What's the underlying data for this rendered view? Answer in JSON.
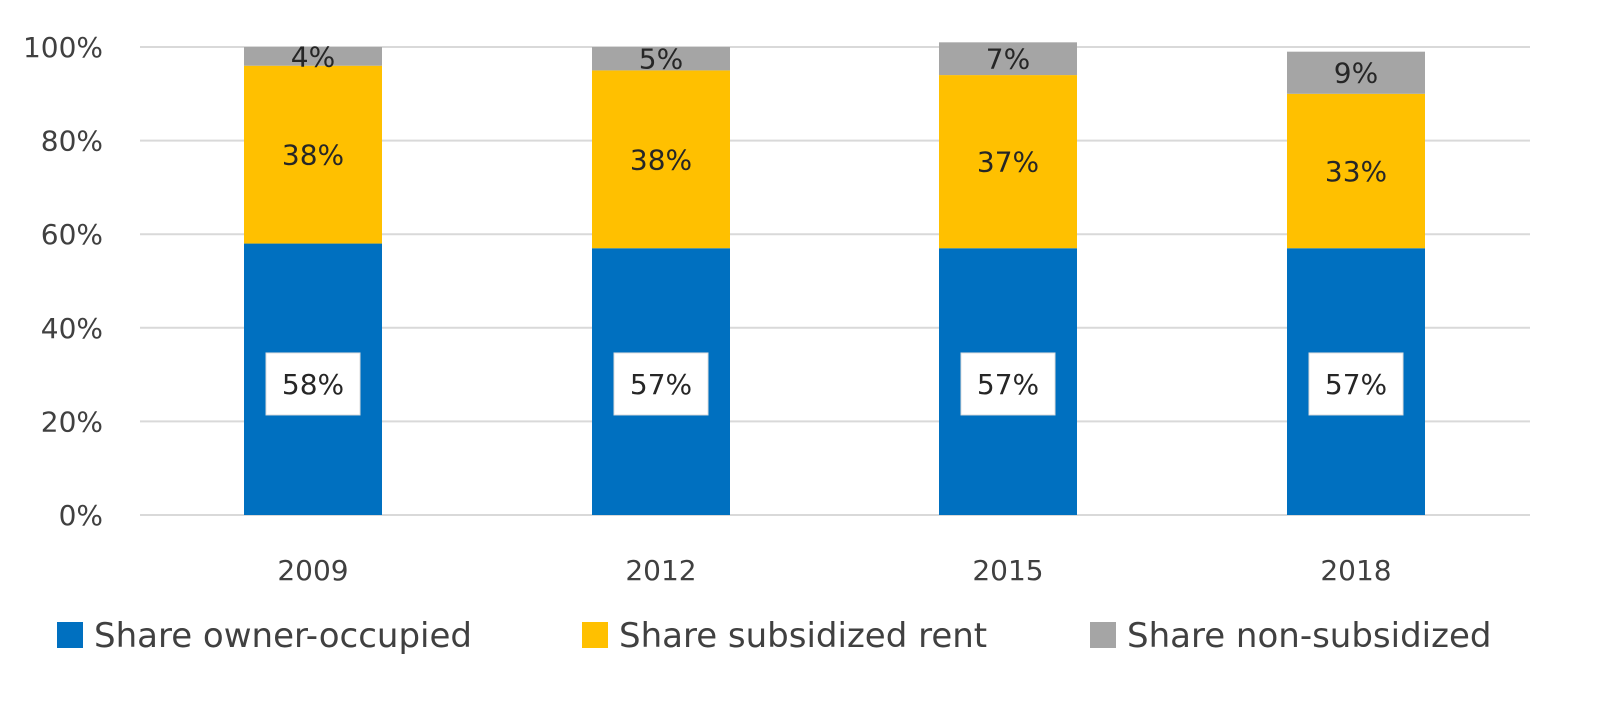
{
  "chart_data": {
    "type": "bar",
    "stacked": true,
    "categories": [
      "2009",
      "2012",
      "2015",
      "2018"
    ],
    "series": [
      {
        "name": "Share owner-occupied",
        "values": [
          58,
          57,
          57,
          57
        ],
        "labels": [
          "58%",
          "57%",
          "57%",
          "57%"
        ],
        "color": "#0070C0"
      },
      {
        "name": "Share subsidized rent",
        "values": [
          38,
          38,
          37,
          33
        ],
        "labels": [
          "38%",
          "38%",
          "37%",
          "33%"
        ],
        "color": "#FFC000"
      },
      {
        "name": "Share non-subsidized",
        "values": [
          4,
          5,
          7,
          9
        ],
        "labels": [
          "4%",
          "5%",
          "7%",
          "9%"
        ],
        "color": "#A5A5A5"
      }
    ],
    "y_ticks": [
      "0%",
      "20%",
      "40%",
      "60%",
      "80%",
      "100%"
    ],
    "ylim": [
      0,
      100
    ],
    "grid": true,
    "legend": "bottom",
    "title": "",
    "xlabel": "",
    "ylabel": ""
  }
}
